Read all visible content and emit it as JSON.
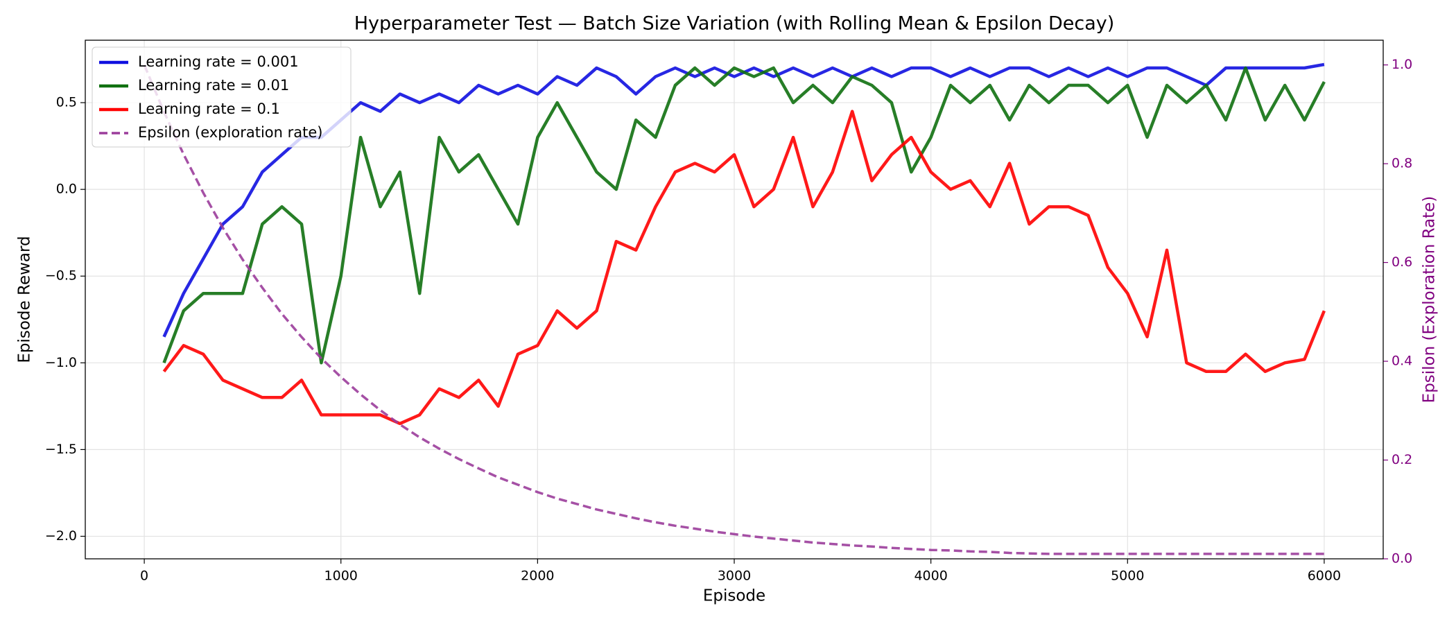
{
  "chart_data": {
    "type": "line",
    "title": "Hyperparameter Test — Batch Size Variation (with Rolling Mean & Epsilon Decay)",
    "x_label": "Episode",
    "y_label": "Episode Reward",
    "y2_label": "Epsilon (Exploration Rate)",
    "x": [
      0,
      100,
      200,
      300,
      400,
      500,
      600,
      700,
      800,
      900,
      1000,
      1100,
      1200,
      1300,
      1400,
      1500,
      1600,
      1700,
      1800,
      1900,
      2000,
      2100,
      2200,
      2300,
      2400,
      2500,
      2600,
      2700,
      2800,
      2900,
      3000,
      3100,
      3200,
      3300,
      3400,
      3500,
      3600,
      3700,
      3800,
      3900,
      4000,
      4100,
      4200,
      4300,
      4400,
      4500,
      4600,
      4700,
      4800,
      4900,
      5000,
      5100,
      5200,
      5300,
      5400,
      5500,
      5600,
      5700,
      5800,
      5900,
      6000
    ],
    "series": [
      {
        "name": "Learning rate = 0.001",
        "color": "#1010e0",
        "values": [
          null,
          -0.85,
          -0.6,
          -0.4,
          -0.2,
          -0.1,
          0.1,
          0.2,
          0.3,
          0.3,
          0.4,
          0.5,
          0.45,
          0.55,
          0.5,
          0.55,
          0.5,
          0.6,
          0.55,
          0.6,
          0.55,
          0.65,
          0.6,
          0.7,
          0.65,
          0.55,
          0.65,
          0.7,
          0.65,
          0.7,
          0.65,
          0.7,
          0.65,
          0.7,
          0.65,
          0.7,
          0.65,
          0.7,
          0.65,
          0.7,
          0.7,
          0.65,
          0.7,
          0.65,
          0.7,
          0.7,
          0.65,
          0.7,
          0.65,
          0.7,
          0.65,
          0.7,
          0.7,
          0.65,
          0.6,
          0.7,
          0.7,
          0.7,
          0.7,
          0.7,
          0.72
        ]
      },
      {
        "name": "Learning rate = 0.01",
        "color": "#107010",
        "values": [
          null,
          -1.0,
          -0.7,
          -0.6,
          -0.6,
          -0.6,
          -0.2,
          -0.1,
          -0.2,
          -1.0,
          -0.5,
          0.3,
          -0.1,
          0.1,
          -0.6,
          0.3,
          0.1,
          0.2,
          0.0,
          -0.2,
          0.3,
          0.5,
          0.3,
          0.1,
          0.0,
          0.4,
          0.3,
          0.6,
          0.7,
          0.6,
          0.7,
          0.65,
          0.7,
          0.5,
          0.6,
          0.5,
          0.65,
          0.6,
          0.5,
          0.1,
          0.3,
          0.6,
          0.5,
          0.6,
          0.4,
          0.6,
          0.5,
          0.6,
          0.6,
          0.5,
          0.6,
          0.3,
          0.6,
          0.5,
          0.6,
          0.4,
          0.7,
          0.4,
          0.6,
          0.4,
          0.62
        ]
      },
      {
        "name": "Learning rate = 0.1",
        "color": "#ff0000",
        "values": [
          null,
          -1.05,
          -0.9,
          -0.95,
          -1.1,
          -1.15,
          -1.2,
          -1.2,
          -1.1,
          -1.3,
          -1.3,
          -1.3,
          -1.3,
          -1.35,
          -1.3,
          -1.15,
          -1.2,
          -1.1,
          -1.25,
          -0.95,
          -0.9,
          -0.7,
          -0.8,
          -0.7,
          -0.3,
          -0.35,
          -0.1,
          0.1,
          0.15,
          0.1,
          0.2,
          -0.1,
          0.0,
          0.3,
          -0.1,
          0.1,
          0.45,
          0.05,
          0.2,
          0.3,
          0.1,
          0.0,
          0.05,
          -0.1,
          0.15,
          -0.2,
          -0.1,
          -0.1,
          -0.15,
          -0.45,
          -0.6,
          -0.85,
          -0.35,
          -1.0,
          -1.05,
          -1.05,
          -0.95,
          -1.05,
          -1.0,
          -0.98,
          -0.7
        ]
      },
      {
        "name": "Epsilon (exploration rate)",
        "color": "#9b3d9b",
        "axis": "y2",
        "linestyle": "dashed",
        "values": [
          1.0,
          0.905,
          0.819,
          0.741,
          0.67,
          0.606,
          0.549,
          0.496,
          0.449,
          0.406,
          0.368,
          0.333,
          0.301,
          0.272,
          0.246,
          0.223,
          0.202,
          0.183,
          0.165,
          0.15,
          0.135,
          0.122,
          0.111,
          0.1,
          0.091,
          0.082,
          0.074,
          0.067,
          0.061,
          0.055,
          0.05,
          0.045,
          0.041,
          0.037,
          0.033,
          0.03,
          0.027,
          0.025,
          0.022,
          0.02,
          0.018,
          0.017,
          0.015,
          0.014,
          0.012,
          0.011,
          0.01,
          0.01,
          0.01,
          0.01,
          0.01,
          0.01,
          0.01,
          0.01,
          0.01,
          0.01,
          0.01,
          0.01,
          0.01,
          0.01,
          0.01
        ]
      }
    ],
    "xlim": [
      -300,
      6300
    ],
    "xticks": [
      0,
      1000,
      2000,
      3000,
      4000,
      5000,
      6000
    ],
    "ylim": [
      -2.13,
      0.86
    ],
    "yticks": [
      {
        "value": -2.0,
        "label": "−2.0"
      },
      {
        "value": -1.5,
        "label": "−1.5"
      },
      {
        "value": -1.0,
        "label": "−1.0"
      },
      {
        "value": -0.5,
        "label": "−0.5"
      },
      {
        "value": 0.0,
        "label": "0.0"
      },
      {
        "value": 0.5,
        "label": "0.5"
      }
    ],
    "y2lim": [
      0,
      1.05
    ],
    "y2ticks": [
      {
        "value": 0.0,
        "label": "0.0"
      },
      {
        "value": 0.2,
        "label": "0.2"
      },
      {
        "value": 0.4,
        "label": "0.4"
      },
      {
        "value": 0.6,
        "label": "0.6"
      },
      {
        "value": 0.8,
        "label": "0.8"
      },
      {
        "value": 1.0,
        "label": "1.0"
      }
    ],
    "y2_color": "#800080",
    "grid": true,
    "legend": "upper left"
  }
}
